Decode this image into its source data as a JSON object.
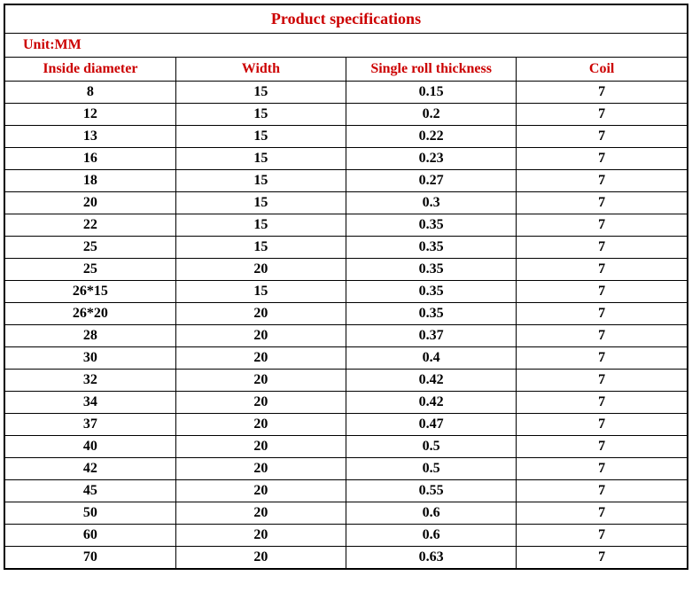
{
  "title": "Product specifications",
  "unit_label": "Unit:MM",
  "colors": {
    "header_text": "#cc0000",
    "body_text": "#000000",
    "border": "#000000",
    "background": "#ffffff"
  },
  "typography": {
    "font_family": "Times New Roman",
    "title_fontsize": 18,
    "header_fontsize": 16,
    "cell_fontsize": 16,
    "font_weight": "bold"
  },
  "table": {
    "columns": [
      "Inside diameter",
      "Width",
      "Single roll thickness",
      "Coil"
    ],
    "rows": [
      [
        "8",
        "15",
        "0.15",
        "7"
      ],
      [
        "12",
        "15",
        "0.2",
        "7"
      ],
      [
        "13",
        "15",
        "0.22",
        "7"
      ],
      [
        "16",
        "15",
        "0.23",
        "7"
      ],
      [
        "18",
        "15",
        "0.27",
        "7"
      ],
      [
        "20",
        "15",
        "0.3",
        "7"
      ],
      [
        "22",
        "15",
        "0.35",
        "7"
      ],
      [
        "25",
        "15",
        "0.35",
        "7"
      ],
      [
        "25",
        "20",
        "0.35",
        "7"
      ],
      [
        "26*15",
        "15",
        "0.35",
        "7"
      ],
      [
        "26*20",
        "20",
        "0.35",
        "7"
      ],
      [
        "28",
        "20",
        "0.37",
        "7"
      ],
      [
        "30",
        "20",
        "0.4",
        "7"
      ],
      [
        "32",
        "20",
        "0.42",
        "7"
      ],
      [
        "34",
        "20",
        "0.42",
        "7"
      ],
      [
        "37",
        "20",
        "0.47",
        "7"
      ],
      [
        "40",
        "20",
        "0.5",
        "7"
      ],
      [
        "42",
        "20",
        "0.5",
        "7"
      ],
      [
        "45",
        "20",
        "0.55",
        "7"
      ],
      [
        "50",
        "20",
        "0.6",
        "7"
      ],
      [
        "60",
        "20",
        "0.6",
        "7"
      ],
      [
        "70",
        "20",
        "0.63",
        "7"
      ]
    ]
  }
}
